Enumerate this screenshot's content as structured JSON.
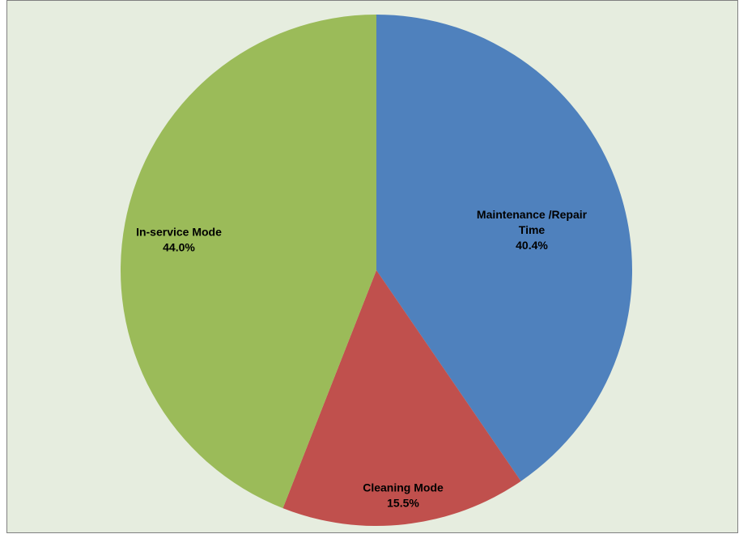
{
  "chart_data": {
    "type": "pie",
    "background": "#e6eddf",
    "slices": [
      {
        "label_lines": [
          "Maintenance /Repair",
          "Time"
        ],
        "value": 40.4,
        "value_label": "40.4%",
        "color": "#4f81bd"
      },
      {
        "label_lines": [
          "Cleaning Mode"
        ],
        "value": 15.5,
        "value_label": "15.5%",
        "color": "#c0504d"
      },
      {
        "label_lines": [
          "In-service Mode"
        ],
        "value": 44.0,
        "value_label": "44.0%",
        "color": "#9bbb59"
      }
    ],
    "start_angle_deg": 0,
    "direction": "clockwise",
    "data_labels": "inside",
    "legend": "none"
  }
}
